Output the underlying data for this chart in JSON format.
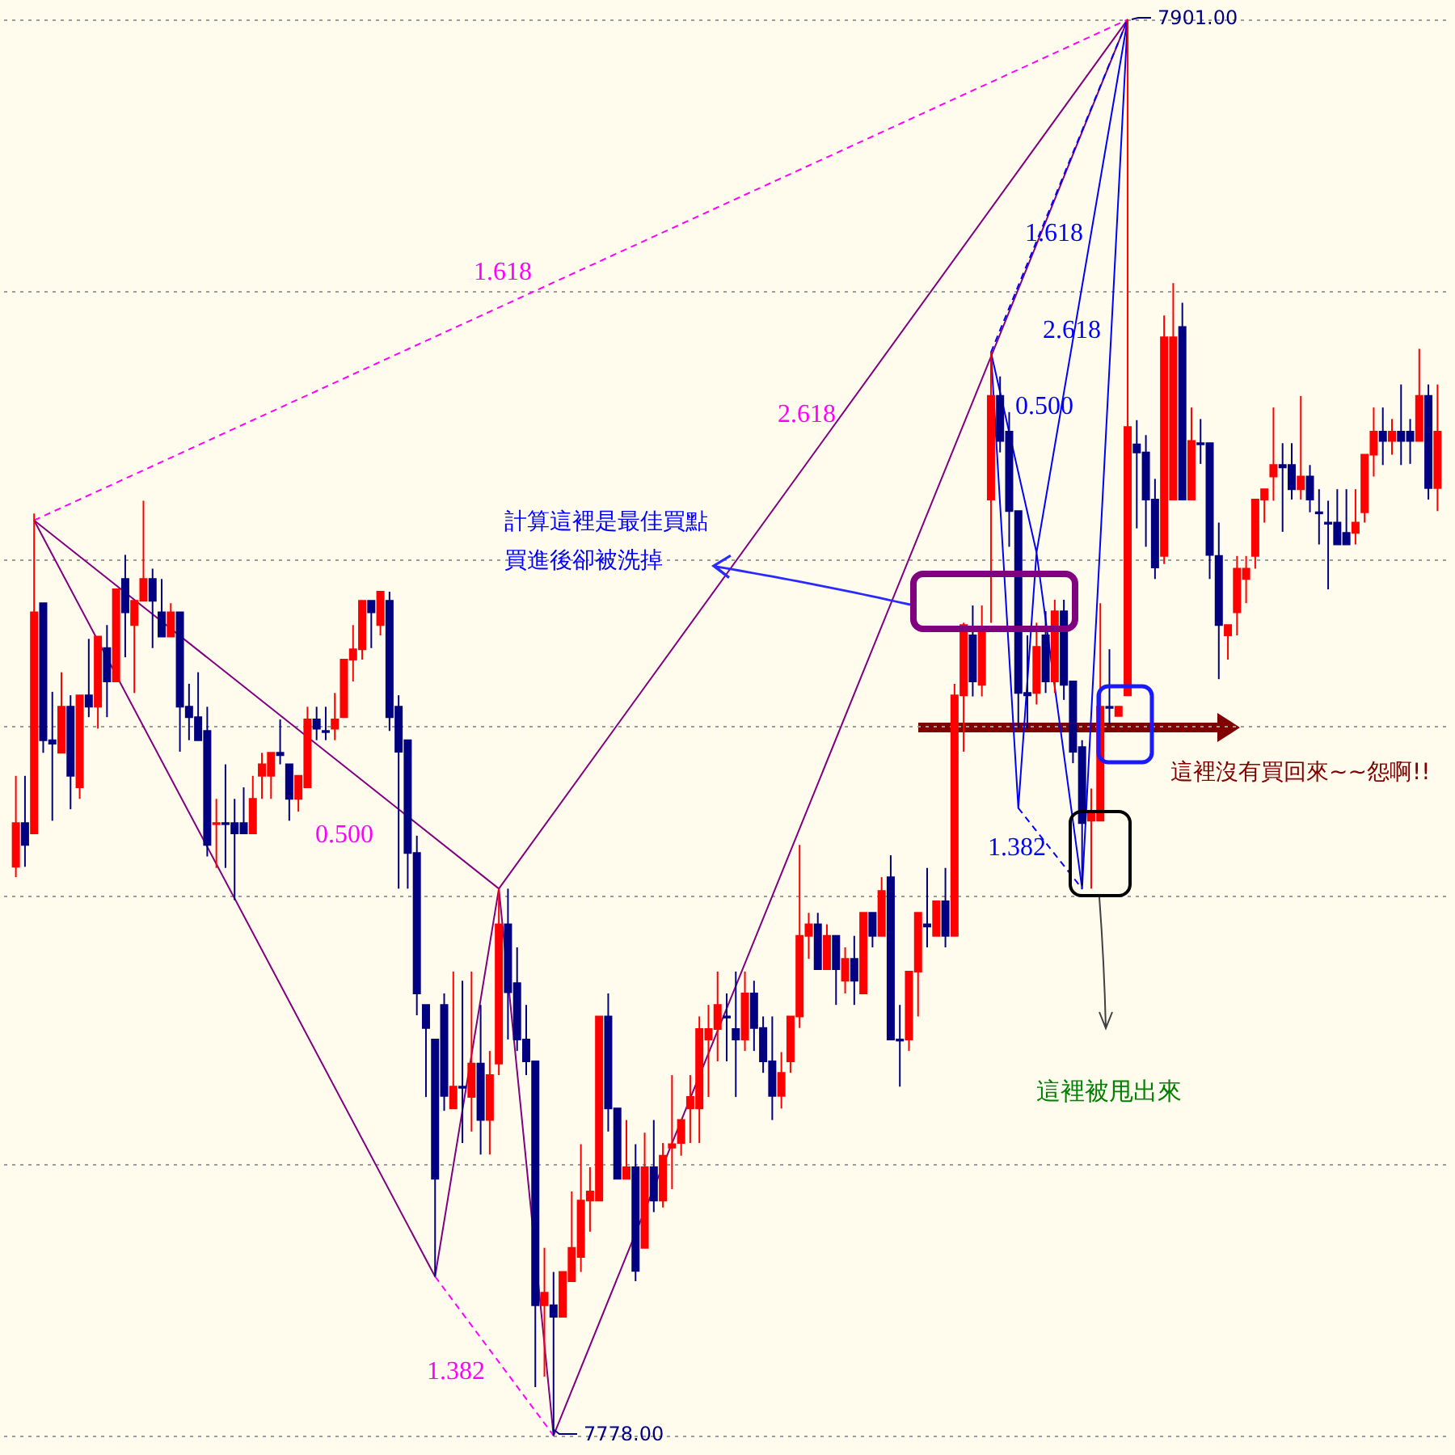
{
  "chart_data": {
    "type": "candlestick",
    "categories": [
      null,
      null,
      null,
      null,
      null,
      null,
      null,
      null,
      null,
      null,
      null,
      null,
      null,
      null,
      null,
      null,
      null,
      null,
      null,
      null,
      null,
      null,
      null,
      null,
      null,
      null,
      null,
      null,
      null,
      null,
      null,
      null,
      null,
      null,
      null,
      null,
      null,
      null,
      null,
      null,
      null,
      null,
      null,
      null,
      null,
      null,
      null,
      null,
      null,
      null,
      null,
      null,
      null,
      null,
      null,
      null,
      null,
      null,
      null,
      null,
      null,
      null,
      null,
      null,
      null,
      null,
      null,
      null,
      null,
      null,
      null,
      null,
      null,
      null,
      null,
      null,
      null,
      null,
      null,
      null,
      null,
      null,
      null,
      null,
      null,
      null,
      null,
      null,
      null,
      null,
      null,
      null,
      null,
      null,
      null,
      null,
      null,
      null,
      null,
      null,
      null,
      null,
      null,
      null,
      null,
      null,
      null,
      null,
      null,
      null,
      null,
      null,
      null,
      null,
      null,
      null,
      null,
      null,
      null,
      null,
      null,
      null,
      null,
      null,
      null,
      null,
      null,
      null,
      null,
      null,
      null,
      null,
      null,
      null,
      null,
      null,
      null,
      null,
      null,
      null,
      null,
      null,
      null,
      null,
      null,
      null,
      null,
      null,
      null,
      null,
      null,
      null,
      null,
      null,
      null,
      null,
      null
    ],
    "ohlc": [
      [
        7827.4,
        7835.3,
        7826.5,
        7831.2
      ],
      [
        7831.2,
        7835.3,
        7827.4,
        7829.3
      ],
      [
        7830.3,
        7858.1,
        7830.3,
        7849.5
      ],
      [
        7850.3,
        7850.3,
        7837.3,
        7838.4
      ],
      [
        7838.4,
        7842.6,
        7831.4,
        7838.1
      ],
      [
        7837.3,
        7844.3,
        7837.3,
        7841.3
      ],
      [
        7841.3,
        7842.3,
        7832.4,
        7835.3
      ],
      [
        7834.3,
        7842.3,
        7833.3,
        7842.3
      ],
      [
        7842.3,
        7847.2,
        7840.4,
        7841.3
      ],
      [
        7841.3,
        7847.4,
        7839.4,
        7847.4
      ],
      [
        7846.4,
        7848.4,
        7840.4,
        7843.5
      ],
      [
        7843.5,
        7851.5,
        7843.5,
        7851.5
      ],
      [
        7852.4,
        7854.5,
        7845.6,
        7849.5
      ],
      [
        7848.4,
        7850.5,
        7842.5,
        7850.5
      ],
      [
        7850.5,
        7859.2,
        7850.5,
        7852.4
      ],
      [
        7852.4,
        7853.3,
        7846.4,
        7850.5
      ],
      [
        7849.5,
        7852.4,
        7847.4,
        7847.4
      ],
      [
        7847.4,
        7850.3,
        7847.4,
        7849.5
      ],
      [
        7849.5,
        7849.5,
        7837.4,
        7841.3
      ],
      [
        7841.3,
        7843.3,
        7838.4,
        7840.4
      ],
      [
        7840.4,
        7844.3,
        7838.4,
        7838.4
      ],
      [
        7839.2,
        7841.3,
        7828.3,
        7829.3
      ],
      [
        7831.1,
        7833.3,
        7827.3,
        7831.2
      ],
      [
        7831.2,
        7836.3,
        7827.3,
        7831.1
      ],
      [
        7831.2,
        7833.3,
        7824.5,
        7830.3
      ],
      [
        7831.2,
        7834.3,
        7830.3,
        7830.3
      ],
      [
        7830.3,
        7835.3,
        7830.3,
        7833.3
      ],
      [
        7835.3,
        7837.3,
        7833.3,
        7836.3
      ],
      [
        7835.3,
        7837.3,
        7833.3,
        7837.3
      ],
      [
        7837.3,
        7840.2,
        7836.3,
        7837.1
      ],
      [
        7836.3,
        7836.3,
        7831.4,
        7833.3
      ],
      [
        7833.3,
        7835.3,
        7832.2,
        7835.3
      ],
      [
        7834.3,
        7841.3,
        7834.3,
        7840.2
      ],
      [
        7840.2,
        7841.3,
        7838.4,
        7839.4
      ],
      [
        7839.2,
        7841.3,
        7838.4,
        7839.1
      ],
      [
        7839.4,
        7842.5,
        7838.4,
        7840.2
      ],
      [
        7840.4,
        7845.4,
        7840.4,
        7845.4
      ],
      [
        7845.4,
        7848.4,
        7843.5,
        7846.3
      ],
      [
        7846.3,
        7850.5,
        7845.4,
        7850.5
      ],
      [
        7850.5,
        7850.5,
        7846.4,
        7849.5
      ],
      [
        7848.4,
        7851.3,
        7847.5,
        7851.3
      ],
      [
        7850.5,
        7851.3,
        7839.2,
        7840.4
      ],
      [
        7841.3,
        7842.3,
        7825.5,
        7837.4
      ],
      [
        7838.4,
        7838.4,
        7825.5,
        7828.6
      ],
      [
        7828.6,
        7830.1,
        7814.5,
        7816.4
      ],
      [
        7815.4,
        7815.4,
        7807.4,
        7813.4
      ],
      [
        7812.4,
        7812.4,
        7791.8,
        7800.3
      ],
      [
        7815.4,
        7816.4,
        7806.2,
        7807.5
      ],
      [
        7806.4,
        7818.3,
        7806.4,
        7808.3
      ],
      [
        7808.3,
        7817.5,
        7803.4,
        7808.2
      ],
      [
        7807.4,
        7818.3,
        7804.4,
        7810.3
      ],
      [
        7810.3,
        7815.4,
        7802.4,
        7805.4
      ],
      [
        7805.4,
        7811.4,
        7802.4,
        7809.3
      ],
      [
        7810.3,
        7825.5,
        7809.3,
        7822.4
      ],
      [
        7822.4,
        7825.5,
        7812.4,
        7816.5
      ],
      [
        7817.3,
        7820.4,
        7811.4,
        7812.4
      ],
      [
        7812.4,
        7815.4,
        7809.3,
        7810.5
      ],
      [
        7810.5,
        7810.5,
        7782.2,
        7789.3
      ],
      [
        7789.3,
        7794.3,
        7783.1,
        7790.4
      ],
      [
        7789.3,
        7792.2,
        7778,
        7788.3
      ],
      [
        7788.3,
        7792.2,
        7788.3,
        7792.2
      ],
      [
        7791.4,
        7799.2,
        7791.4,
        7794.3
      ],
      [
        7793.5,
        7803.3,
        7792.2,
        7798.4
      ],
      [
        7798.4,
        7801.3,
        7795.7,
        7799.2
      ],
      [
        7798.4,
        7814.4,
        7798.4,
        7814.4
      ],
      [
        7814.4,
        7816.4,
        7804.4,
        7806.4
      ],
      [
        7806.4,
        7806.4,
        7800.3,
        7800.3
      ],
      [
        7800.3,
        7805.4,
        7800.3,
        7801.3
      ],
      [
        7801.3,
        7803.3,
        7791.4,
        7792.3
      ],
      [
        7794.3,
        7804.3,
        7794.3,
        7801.3
      ],
      [
        7801.3,
        7805.4,
        7797.4,
        7798.4
      ],
      [
        7798.4,
        7803.4,
        7797.8,
        7802.3
      ],
      [
        7803.0,
        7809.3,
        7799.4,
        7803.3
      ],
      [
        7803.4,
        7805.4,
        7802.3,
        7805.4
      ],
      [
        7806.4,
        7809.3,
        7803.4,
        7807.4
      ],
      [
        7806.4,
        7814.4,
        7803.4,
        7813.3
      ],
      [
        7812.4,
        7815.4,
        7807.4,
        7813.3
      ],
      [
        7813.3,
        7818.3,
        7810.5,
        7815.4
      ],
      [
        7814.4,
        7816.4,
        7810.5,
        7814.3
      ],
      [
        7813.3,
        7818.3,
        7807.4,
        7812.4
      ],
      [
        7812.4,
        7818.3,
        7811.4,
        7816.4
      ],
      [
        7816.4,
        7817.5,
        7811.4,
        7813.4
      ],
      [
        7813.4,
        7814.4,
        7809.5,
        7810.5
      ],
      [
        7810.5,
        7814.4,
        7805.4,
        7807.5
      ],
      [
        7807.5,
        7811.3,
        7806.4,
        7809.5
      ],
      [
        7810.5,
        7814.4,
        7809.5,
        7814.4
      ],
      [
        7814.4,
        7829.3,
        7813.4,
        7821.4
      ],
      [
        7821.4,
        7823.4,
        7819.4,
        7822.4
      ],
      [
        7822.4,
        7823.4,
        7818.5,
        7818.5
      ],
      [
        7818.5,
        7822.4,
        7818.5,
        7821.4
      ],
      [
        7821.4,
        7821.4,
        7815.4,
        7818.5
      ],
      [
        7817.5,
        7820.4,
        7816.4,
        7819.4
      ],
      [
        7819.4,
        7821.4,
        7815.4,
        7817.5
      ],
      [
        7816.4,
        7823.4,
        7816.4,
        7823.4
      ],
      [
        7823.4,
        7823.4,
        7820.4,
        7821.4
      ],
      [
        7821.4,
        7826.5,
        7821.4,
        7825.3
      ],
      [
        7826.5,
        7828.4,
        7812.4,
        7812.4
      ],
      [
        7812.4,
        7815.4,
        7808.3,
        7812.3
      ],
      [
        7812.4,
        7818.3,
        7811.4,
        7818.3
      ],
      [
        7818.3,
        7823.4,
        7814.4,
        7823.4
      ],
      [
        7822.4,
        7827.3,
        7820.4,
        7822.2
      ],
      [
        7821.4,
        7824.4,
        7821.4,
        7824.4
      ],
      [
        7824.4,
        7827.3,
        7820.4,
        7821.4
      ],
      [
        7821.4,
        7843.3,
        7821.4,
        7842.3
      ],
      [
        7842.3,
        7848.6,
        7837.4,
        7848.4
      ],
      [
        7847.5,
        7850.1,
        7842.2,
        7843.5
      ],
      [
        7843.2,
        7850.1,
        7842.2,
        7847.8
      ],
      [
        7859.3,
        7872.1,
        7848.6,
        7868.3
      ],
      [
        7868.3,
        7870.0,
        7863.4,
        7864.4
      ],
      [
        7865.2,
        7866.9,
        7855.2,
        7858.3
      ],
      [
        7858.3,
        7858.3,
        7839.4,
        7842.5
      ],
      [
        7842.5,
        7847.5,
        7839.4,
        7842.3
      ],
      [
        7842.5,
        7848.6,
        7841.5,
        7846.5
      ],
      [
        7847.5,
        7849.6,
        7842.5,
        7843.5
      ],
      [
        7843.5,
        7850.6,
        7842.5,
        7849.6
      ],
      [
        7849.6,
        7850.6,
        7841.9,
        7843.2
      ],
      [
        7843.5,
        7843.5,
        7836.4,
        7837.4
      ],
      [
        7837.8,
        7838.4,
        7825.8,
        7831.2
      ],
      [
        7831.4,
        7834.2,
        7825.5,
        7832.1
      ],
      [
        7831.4,
        7850.3,
        7831.4,
        7841.3
      ],
      [
        7841.3,
        7846.3,
        7839.8,
        7841.2
      ],
      [
        7840.5,
        7841.3,
        7840.5,
        7841.3
      ],
      [
        7842.3,
        7901,
        7842.3,
        7865.6
      ],
      [
        7864.1,
        7866.2,
        7856.8,
        7863.4
      ],
      [
        7863.4,
        7864.9,
        7855.2,
        7859.3
      ],
      [
        7859.3,
        7861.1,
        7852.4,
        7853.4
      ],
      [
        7854.4,
        7875.3,
        7853.7,
        7873.4
      ],
      [
        7859.3,
        7878.1,
        7859.3,
        7873.4
      ],
      [
        7874.3,
        7876.4,
        7859.3,
        7859.3
      ],
      [
        7859.3,
        7867.3,
        7859.3,
        7864.4
      ],
      [
        7864.2,
        7866.3,
        7862.4,
        7864.1
      ],
      [
        7864.2,
        7864.2,
        7852.4,
        7854.5
      ],
      [
        7854.4,
        7857.3,
        7843.7,
        7848.4
      ],
      [
        7847.5,
        7848.4,
        7845.4,
        7848.4
      ],
      [
        7849.5,
        7854.4,
        7847.5,
        7853.3
      ],
      [
        7852.4,
        7854.4,
        7850.3,
        7853.3
      ],
      [
        7854.4,
        7859.3,
        7853.3,
        7859.3
      ],
      [
        7859.3,
        7860.2,
        7857.3,
        7860.2
      ],
      [
        7861.3,
        7867.3,
        7859.2,
        7862.3
      ],
      [
        7862.3,
        7864.2,
        7856.5,
        7862.1
      ],
      [
        7862.3,
        7864.2,
        7859.3,
        7860.2
      ],
      [
        7860.2,
        7868.3,
        7859.3,
        7861.3
      ],
      [
        7861.3,
        7862.3,
        7858.2,
        7859.3
      ],
      [
        7858.2,
        7860.2,
        7855.4,
        7858.1
      ],
      [
        7857.3,
        7859.2,
        7851.5,
        7857.2
      ],
      [
        7857.3,
        7860.2,
        7855.4,
        7855.4
      ],
      [
        7856.4,
        7860.2,
        7855.4,
        7855.4
      ],
      [
        7856.4,
        7860.2,
        7855.4,
        7857.3
      ],
      [
        7858.2,
        7863.2,
        7857.3,
        7863.2
      ],
      [
        7863.2,
        7867.3,
        7861.3,
        7865.2
      ],
      [
        7865.2,
        7867.3,
        7862.3,
        7864.4
      ],
      [
        7864.4,
        7866.3,
        7863.2,
        7865.2
      ],
      [
        7865.2,
        7869.3,
        7862.3,
        7864.4
      ],
      [
        7865.2,
        7866.3,
        7862.4,
        7864.4
      ],
      [
        7864.4,
        7872.4,
        7864.4,
        7868.3
      ],
      [
        7868.3,
        7869.3,
        7859.3,
        7860.3
      ],
      [
        7860.3,
        7869.3,
        7858.3,
        7865.2
      ]
    ],
    "colors": [
      "#ff0000",
      "#000080",
      "#ff0000",
      "#000080",
      "#000080",
      "#ff0000",
      "#000080",
      "#ff0000",
      "#000080",
      "#ff0000",
      "#000080",
      "#ff0000",
      "#000080",
      "#ff0000",
      "#ff0000",
      "#000080",
      "#000080",
      "#ff0000",
      "#000080",
      "#000080",
      "#000080",
      "#000080",
      "#ff0000",
      "#000080",
      "#000080",
      "#000080",
      "#ff0000",
      "#ff0000",
      "#ff0000",
      "#000080",
      "#000080",
      "#ff0000",
      "#ff0000",
      "#000080",
      "#000080",
      "#ff0000",
      "#ff0000",
      "#ff0000",
      "#ff0000",
      "#000080",
      "#ff0000",
      "#000080",
      "#000080",
      "#000080",
      "#000080",
      "#000080",
      "#000080",
      "#000080",
      "#ff0000",
      "#000080",
      "#ff0000",
      "#000080",
      "#ff0000",
      "#ff0000",
      "#000080",
      "#000080",
      "#000080",
      "#000080",
      "#ff0000",
      "#000080",
      "#ff0000",
      "#ff0000",
      "#ff0000",
      "#ff0000",
      "#ff0000",
      "#000080",
      "#000080",
      "#ff0000",
      "#000080",
      "#ff0000",
      "#000080",
      "#ff0000",
      "#ff0000",
      "#ff0000",
      "#ff0000",
      "#ff0000",
      "#ff0000",
      "#ff0000",
      "#000080",
      "#000080",
      "#ff0000",
      "#000080",
      "#000080",
      "#000080",
      "#ff0000",
      "#ff0000",
      "#ff0000",
      "#ff0000",
      "#000080",
      "#ff0000",
      "#000080",
      "#ff0000",
      "#000080",
      "#ff0000",
      "#000080",
      "#ff0000",
      "#000080",
      "#000080",
      "#ff0000",
      "#ff0000",
      "#000080",
      "#ff0000",
      "#000080",
      "#ff0000",
      "#ff0000",
      "#000080",
      "#ff0000",
      "#ff0000",
      "#000080",
      "#000080",
      "#000080",
      "#000080",
      "#ff0000",
      "#000080",
      "#ff0000",
      "#000080",
      "#000080",
      "#000080",
      "#ff0000",
      "#ff0000",
      "#000080",
      "#ff0000",
      "#ff0000",
      "#000080",
      "#000080",
      "#000080",
      "#ff0000",
      "#ff0000",
      "#000080",
      "#ff0000",
      "#000080",
      "#000080",
      "#000080",
      "#ff0000",
      "#ff0000",
      "#ff0000",
      "#ff0000",
      "#ff0000",
      "#ff0000",
      "#000080",
      "#000080",
      "#ff0000",
      "#000080",
      "#000080",
      "#000080",
      "#000080",
      "#000080",
      "#ff0000",
      "#ff0000",
      "#ff0000",
      "#000080",
      "#ff0000",
      "#000080",
      "#000080",
      "#ff0000",
      "#000080",
      "#ff0000"
    ],
    "series": [
      {
        "type": "line",
        "color": "#800080",
        "line_style": "solid",
        "values": [
          null,
          null,
          7857.5,
          null,
          null,
          null,
          null,
          null,
          null,
          null,
          null,
          null,
          null,
          null,
          null,
          null,
          null,
          null,
          null,
          null,
          null,
          null,
          null,
          null,
          null,
          null,
          null,
          null,
          null,
          null,
          null,
          null,
          null,
          null,
          null,
          null,
          null,
          null,
          null,
          null,
          null,
          null,
          null,
          null,
          null,
          null,
          7791.8,
          null,
          null,
          null,
          null,
          null,
          null,
          7825.5,
          null,
          null,
          null,
          null,
          null,
          7778,
          null,
          null,
          null,
          null,
          null,
          null,
          null,
          null,
          null,
          null,
          null,
          null,
          null,
          null,
          null,
          null,
          null,
          null,
          null,
          null,
          null,
          null,
          null,
          null,
          null,
          null,
          null,
          null,
          null,
          null,
          null,
          null,
          null,
          null,
          null,
          null,
          null,
          null,
          null,
          null,
          null,
          null,
          null,
          null,
          null,
          null,
          null,
          null,
          null,
          null,
          null,
          null,
          null,
          null,
          null,
          null,
          null,
          null,
          null,
          null,
          null,
          null,
          7901,
          null,
          null,
          null,
          null,
          null,
          null,
          null,
          null,
          null,
          null,
          null,
          null,
          null,
          null,
          null,
          null,
          null,
          null,
          null,
          null,
          null,
          null,
          null,
          null,
          null,
          null,
          null,
          null,
          null,
          null,
          null,
          null,
          null,
          null
        ]
      },
      {
        "type": "line",
        "color": "#800080",
        "line_style": "solid",
        "values": [
          null,
          null,
          7857.5,
          null,
          null,
          null,
          null,
          null,
          null,
          null,
          null,
          null,
          null,
          null,
          null,
          null,
          null,
          null,
          null,
          null,
          null,
          null,
          null,
          null,
          null,
          null,
          null,
          null,
          null,
          null,
          null,
          null,
          null,
          null,
          null,
          null,
          null,
          null,
          null,
          null,
          null,
          null,
          null,
          null,
          null,
          null,
          null,
          null,
          null,
          null,
          null,
          null,
          null,
          7825.5,
          null,
          null,
          null,
          null,
          null,
          null,
          null,
          null,
          null,
          null,
          null,
          null,
          null,
          null,
          null,
          null,
          null,
          null,
          null,
          null,
          null,
          null,
          null,
          null,
          null,
          null,
          null,
          null,
          null,
          null,
          null,
          null,
          null,
          null,
          null,
          null,
          null,
          null,
          null,
          null,
          null,
          null,
          null,
          null,
          null,
          null,
          null,
          null,
          null,
          null,
          null,
          null,
          null,
          null,
          null,
          null,
          null,
          null,
          null,
          null,
          null,
          null,
          null,
          null,
          null,
          null,
          null,
          null,
          7901,
          null,
          null,
          null,
          null,
          null,
          null,
          null,
          null,
          null,
          null,
          null,
          null,
          null,
          null,
          null,
          null,
          null,
          null,
          null,
          null,
          null,
          null,
          null,
          null,
          null,
          null,
          null,
          null,
          null,
          null,
          null,
          null,
          null,
          null
        ]
      },
      {
        "type": "line",
        "color": "#ff00ff",
        "line_style": "dashed",
        "values": [
          null,
          null,
          7857.5,
          null,
          null,
          null,
          null,
          null,
          null,
          null,
          null,
          null,
          null,
          null,
          null,
          null,
          null,
          null,
          null,
          null,
          null,
          null,
          null,
          null,
          null,
          null,
          null,
          null,
          null,
          null,
          null,
          null,
          null,
          null,
          null,
          null,
          null,
          null,
          null,
          null,
          null,
          null,
          null,
          null,
          null,
          null,
          null,
          null,
          null,
          null,
          null,
          null,
          null,
          null,
          null,
          null,
          null,
          null,
          null,
          null,
          null,
          null,
          null,
          null,
          null,
          null,
          null,
          null,
          null,
          null,
          null,
          null,
          null,
          null,
          null,
          null,
          null,
          null,
          null,
          null,
          null,
          null,
          null,
          null,
          null,
          null,
          null,
          null,
          null,
          null,
          null,
          null,
          null,
          null,
          null,
          null,
          null,
          null,
          null,
          null,
          null,
          null,
          null,
          null,
          null,
          null,
          null,
          null,
          null,
          null,
          null,
          null,
          null,
          null,
          null,
          null,
          null,
          null,
          null,
          null,
          null,
          null,
          7901,
          null,
          null,
          null,
          null,
          null,
          null,
          null,
          null,
          null,
          null,
          null,
          null,
          null,
          null,
          null,
          null,
          null,
          null,
          null,
          null,
          null,
          null,
          null,
          null,
          null,
          null,
          null,
          null,
          null,
          null,
          null,
          null,
          null,
          null
        ]
      },
      {
        "type": "line",
        "color": "#ff00ff",
        "line_style": "dashed",
        "values": [
          null,
          null,
          null,
          null,
          null,
          null,
          null,
          null,
          null,
          null,
          null,
          null,
          null,
          null,
          null,
          null,
          null,
          null,
          null,
          null,
          null,
          null,
          null,
          null,
          null,
          null,
          null,
          null,
          null,
          null,
          null,
          null,
          null,
          null,
          null,
          null,
          null,
          null,
          null,
          null,
          null,
          null,
          null,
          null,
          null,
          null,
          7791.8,
          null,
          null,
          null,
          null,
          null,
          null,
          null,
          null,
          null,
          null,
          null,
          null,
          7778,
          null,
          null,
          null,
          null,
          null,
          null,
          null,
          null,
          null,
          null,
          null,
          null,
          null,
          null,
          null,
          null,
          null,
          null,
          null,
          null,
          null,
          null,
          null,
          null,
          null,
          null,
          null,
          null,
          null,
          null,
          null,
          null,
          null,
          null,
          null,
          null,
          null,
          null,
          null,
          null,
          null,
          null,
          null,
          null,
          null,
          null,
          null,
          null,
          null,
          null,
          null,
          null,
          null,
          null,
          null,
          null,
          null,
          null,
          null,
          null,
          null,
          null,
          null,
          null,
          null,
          null,
          null,
          null,
          null,
          null,
          null,
          null,
          null,
          null,
          null,
          null,
          null,
          null,
          null,
          null,
          null,
          null,
          null,
          null,
          null,
          null,
          null,
          null,
          null,
          null,
          null,
          null,
          null,
          null,
          null,
          null,
          null
        ]
      },
      {
        "type": "line",
        "color": "#0000ff",
        "line_style": "solid",
        "values": [
          null,
          null,
          null,
          null,
          null,
          null,
          null,
          null,
          null,
          null,
          null,
          null,
          null,
          null,
          null,
          null,
          null,
          null,
          null,
          null,
          null,
          null,
          null,
          null,
          null,
          null,
          null,
          null,
          null,
          null,
          null,
          null,
          null,
          null,
          null,
          null,
          null,
          null,
          null,
          null,
          null,
          null,
          null,
          null,
          null,
          null,
          null,
          null,
          null,
          null,
          null,
          null,
          null,
          null,
          null,
          null,
          null,
          null,
          null,
          null,
          null,
          null,
          null,
          null,
          null,
          null,
          null,
          null,
          null,
          null,
          null,
          null,
          null,
          null,
          null,
          null,
          null,
          null,
          null,
          null,
          null,
          null,
          null,
          null,
          null,
          null,
          null,
          null,
          null,
          null,
          null,
          null,
          null,
          null,
          null,
          null,
          null,
          null,
          null,
          null,
          null,
          null,
          null,
          null,
          null,
          null,
          null,
          7872.1,
          null,
          null,
          7832.5,
          null,
          7854.7,
          null,
          null,
          null,
          null,
          7825.5,
          null,
          null,
          null,
          null,
          7901,
          null,
          null,
          null,
          null,
          null,
          null,
          null,
          null,
          null,
          null,
          null,
          null,
          null,
          null,
          null,
          null,
          null,
          null,
          null,
          null,
          null,
          null,
          null,
          null,
          null,
          null,
          null,
          null,
          null,
          null,
          null,
          null,
          null,
          null
        ]
      },
      {
        "type": "line",
        "color": "#0000ff",
        "line_style": "solid",
        "values": [
          null,
          null,
          null,
          null,
          null,
          null,
          null,
          null,
          null,
          null,
          null,
          null,
          null,
          null,
          null,
          null,
          null,
          null,
          null,
          null,
          null,
          null,
          null,
          null,
          null,
          null,
          null,
          null,
          null,
          null,
          null,
          null,
          null,
          null,
          null,
          null,
          null,
          null,
          null,
          null,
          null,
          null,
          null,
          null,
          null,
          null,
          null,
          null,
          null,
          null,
          null,
          null,
          null,
          null,
          null,
          null,
          null,
          null,
          null,
          null,
          null,
          null,
          null,
          null,
          null,
          null,
          null,
          null,
          null,
          null,
          null,
          null,
          null,
          null,
          null,
          null,
          null,
          null,
          null,
          null,
          null,
          null,
          null,
          null,
          null,
          null,
          null,
          null,
          null,
          null,
          null,
          null,
          null,
          null,
          null,
          null,
          null,
          null,
          null,
          null,
          null,
          null,
          null,
          null,
          null,
          null,
          null,
          7872.1,
          null,
          null,
          null,
          null,
          7854.7,
          null,
          null,
          null,
          null,
          null,
          null,
          null,
          null,
          null,
          7901,
          null,
          null,
          null,
          null,
          null,
          null,
          null,
          null,
          null,
          null,
          null,
          null,
          null,
          null,
          null,
          null,
          null,
          null,
          null,
          null,
          null,
          null,
          null,
          null,
          null,
          null,
          null,
          null,
          null,
          null,
          null,
          null,
          null,
          null
        ]
      },
      {
        "type": "line",
        "color": "#0000ff",
        "line_style": "dashed",
        "values": [
          null,
          null,
          null,
          null,
          null,
          null,
          null,
          null,
          null,
          null,
          null,
          null,
          null,
          null,
          null,
          null,
          null,
          null,
          null,
          null,
          null,
          null,
          null,
          null,
          null,
          null,
          null,
          null,
          null,
          null,
          null,
          null,
          null,
          null,
          null,
          null,
          null,
          null,
          null,
          null,
          null,
          null,
          null,
          null,
          null,
          null,
          null,
          null,
          null,
          null,
          null,
          null,
          null,
          null,
          null,
          null,
          null,
          null,
          null,
          null,
          null,
          null,
          null,
          null,
          null,
          null,
          null,
          null,
          null,
          null,
          null,
          null,
          null,
          null,
          null,
          null,
          null,
          null,
          null,
          null,
          null,
          null,
          null,
          null,
          null,
          null,
          null,
          null,
          null,
          null,
          null,
          null,
          null,
          null,
          null,
          null,
          null,
          null,
          null,
          null,
          null,
          null,
          null,
          null,
          null,
          null,
          null,
          7872.1,
          null,
          null,
          null,
          null,
          null,
          null,
          null,
          null,
          null,
          null,
          null,
          null,
          null,
          null,
          7901,
          null,
          null,
          null,
          null,
          null,
          null,
          null,
          null,
          null,
          null,
          null,
          null,
          null,
          null,
          null,
          null,
          null,
          null,
          null,
          null,
          null,
          null,
          null,
          null,
          null,
          null,
          null,
          null,
          null,
          null,
          null,
          null,
          null,
          null
        ]
      },
      {
        "type": "line",
        "color": "#0000ff",
        "line_style": "dashed",
        "values": [
          null,
          null,
          null,
          null,
          null,
          null,
          null,
          null,
          null,
          null,
          null,
          null,
          null,
          null,
          null,
          null,
          null,
          null,
          null,
          null,
          null,
          null,
          null,
          null,
          null,
          null,
          null,
          null,
          null,
          null,
          null,
          null,
          null,
          null,
          null,
          null,
          null,
          null,
          null,
          null,
          null,
          null,
          null,
          null,
          null,
          null,
          null,
          null,
          null,
          null,
          null,
          null,
          null,
          null,
          null,
          null,
          null,
          null,
          null,
          null,
          null,
          null,
          null,
          null,
          null,
          null,
          null,
          null,
          null,
          null,
          null,
          null,
          null,
          null,
          null,
          null,
          null,
          null,
          null,
          null,
          null,
          null,
          null,
          null,
          null,
          null,
          null,
          null,
          null,
          null,
          null,
          null,
          null,
          null,
          null,
          null,
          null,
          null,
          null,
          null,
          null,
          null,
          null,
          null,
          null,
          null,
          null,
          null,
          null,
          null,
          7832.5,
          null,
          null,
          null,
          null,
          null,
          null,
          7825.5,
          null,
          null,
          null,
          null,
          null,
          null,
          null,
          null,
          null,
          null,
          null,
          null,
          null,
          null,
          null,
          null,
          null,
          null,
          null,
          null,
          null,
          null,
          null,
          null,
          null,
          null,
          null,
          null,
          null,
          null,
          null,
          null,
          null,
          null,
          null,
          null,
          null,
          null,
          null
        ]
      }
    ],
    "ylim": [
      7776.3,
      7902.7
    ],
    "yticks": [
      {
        "value": 7901,
        "label": null
      },
      {
        "value": 7877.4,
        "label": null
      },
      {
        "value": 7854.1,
        "label": null
      },
      {
        "value": 7839.6,
        "label": null
      },
      {
        "value": 7824.9,
        "label": null
      },
      {
        "value": 7801.6,
        "label": null
      },
      {
        "value": 7778,
        "label": null
      }
    ],
    "grid": "y",
    "annotations": [
      "1.618",
      "2.618",
      "0.500",
      "1.382",
      "1.618",
      "2.618",
      "0.500",
      "1.382",
      "計算這裡是最佳買點",
      "買進後卻被洗掉",
      "這裡沒有買回來~~怨啊!!",
      "這裡被甩出來",
      "7901.00",
      "7778.00"
    ]
  }
}
